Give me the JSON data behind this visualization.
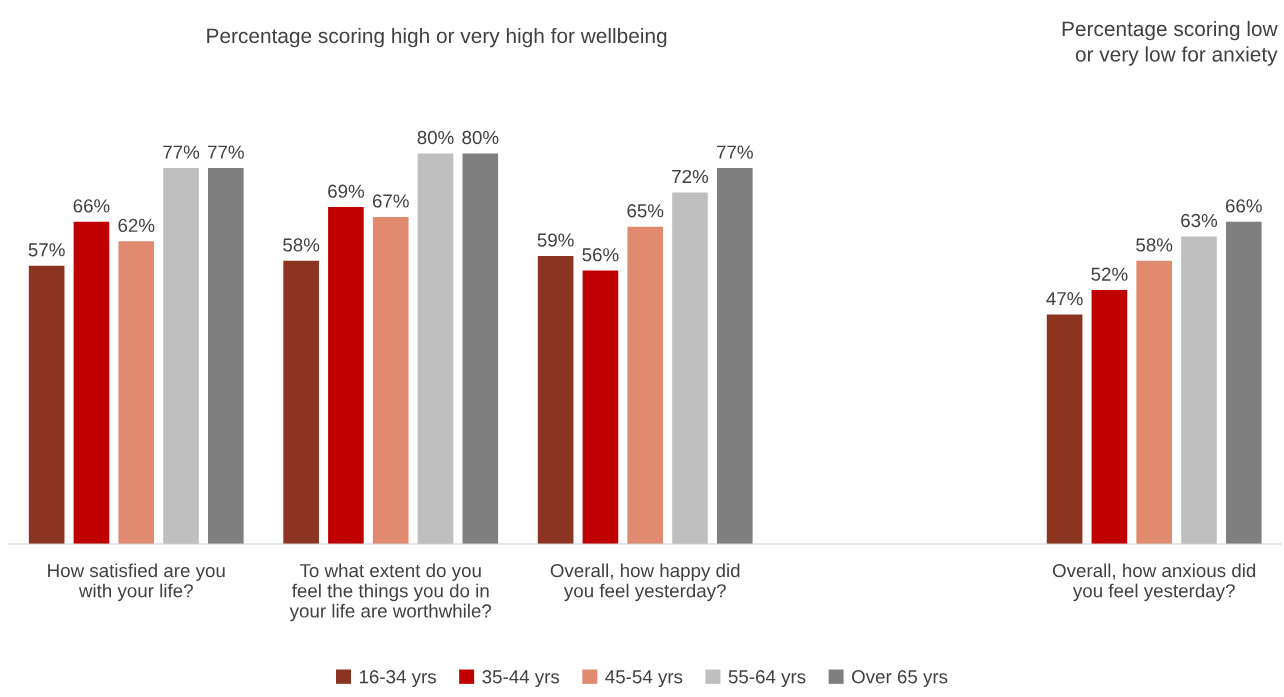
{
  "chart_data": {
    "type": "bar",
    "annotations": [
      "Percentage scoring high or very high for wellbeing",
      "Percentage scoring low\nor very low for anxiety"
    ],
    "categories": [
      "How satisfied are you\nwith your life?",
      "To what extent do you\nfeel the things you do in\nyour life are worthwhile?",
      "Overall, how happy did\nyou feel yesterday?",
      null,
      "Overall, how anxious did\nyou feel yesterday?"
    ],
    "tick_labels": "x",
    "grid": false,
    "legend": "bottom",
    "series": [
      {
        "name": "16-34 yrs",
        "color": "#8b3520",
        "values": [
          57,
          58,
          59,
          null,
          47
        ],
        "value_labels": [
          "57%",
          "58%",
          "59%",
          null,
          "47%"
        ]
      },
      {
        "name": "35-44 yrs",
        "color": "#c00000",
        "values": [
          66,
          69,
          56,
          null,
          52
        ],
        "value_labels": [
          "66%",
          "69%",
          "56%",
          null,
          "52%"
        ]
      },
      {
        "name": "45-54 yrs",
        "color": "#e08b6f",
        "values": [
          62,
          67,
          65,
          null,
          58
        ],
        "value_labels": [
          "62%",
          "67%",
          "65%",
          null,
          "58%"
        ]
      },
      {
        "name": "55-64 yrs",
        "color": "#bfbfbf",
        "values": [
          77,
          80,
          72,
          null,
          63
        ],
        "value_labels": [
          "77%",
          "80%",
          "72%",
          null,
          "63%"
        ]
      },
      {
        "name": "Over 65 yrs",
        "color": "#7f7f7f",
        "values": [
          77,
          80,
          77,
          null,
          66
        ],
        "value_labels": [
          "77%",
          "80%",
          "77%",
          null,
          "66%"
        ]
      }
    ]
  }
}
